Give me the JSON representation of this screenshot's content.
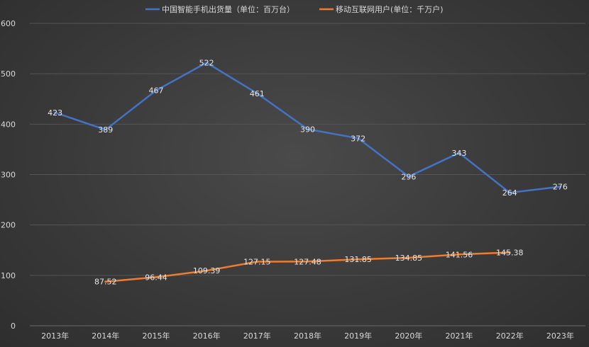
{
  "chart_data": {
    "type": "line",
    "title": "",
    "xlabel": "",
    "ylabel": "",
    "categories": [
      "2013年",
      "2014年",
      "2015年",
      "2016年",
      "2017年",
      "2018年",
      "2019年",
      "2020年",
      "2021年",
      "2022年",
      "2023年"
    ],
    "ylim": [
      0,
      600
    ],
    "yticks": [
      0,
      100,
      200,
      300,
      400,
      500,
      600
    ],
    "grid": true,
    "legend_position": "top-center",
    "series": [
      {
        "name": "中国智能手机出货量（单位：百万台）",
        "color": "#4472c4",
        "values": [
          423,
          389,
          467,
          522,
          461,
          390,
          372,
          296,
          343,
          264,
          276
        ],
        "labels": [
          "423",
          "389",
          "467",
          "522",
          "461",
          "390",
          "372",
          "296",
          "343",
          "264",
          "276"
        ]
      },
      {
        "name": "移动互联网用户(单位：千万户)",
        "color": "#ed7d31",
        "values": [
          null,
          87.52,
          96.44,
          109.39,
          127.15,
          127.48,
          131.85,
          134.85,
          141.56,
          145.38,
          null
        ],
        "labels": [
          null,
          "87.52",
          "96.44",
          "109.39",
          "127.15",
          "127.48",
          "131.85",
          "134.85",
          "141.56",
          "145.38",
          null
        ]
      }
    ]
  }
}
